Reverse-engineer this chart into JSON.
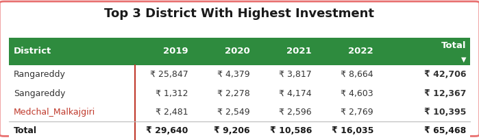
{
  "title": "Top 3 District With Highest Investment",
  "title_fontsize": 13,
  "header_bg_color": "#2e8b3e",
  "header_text_color": "#ffffff",
  "outer_border_color": "#e87070",
  "col_divider_color": "#c0392b",
  "columns": [
    "District",
    "2019",
    "2020",
    "2021",
    "2022",
    "Total"
  ],
  "col_aligns": [
    "left",
    "right",
    "right",
    "right",
    "right",
    "right"
  ],
  "rows": [
    [
      "Rangareddy",
      "₹ 25,847",
      "₹ 4,379",
      "₹ 3,817",
      "₹ 8,664",
      "₹ 42,706"
    ],
    [
      "Sangareddy",
      "₹ 1,312",
      "₹ 2,278",
      "₹ 4,174",
      "₹ 4,603",
      "₹ 12,367"
    ],
    [
      "Medchal_Malkajgiri",
      "₹ 2,481",
      "₹ 2,549",
      "₹ 2,596",
      "₹ 2,769",
      "₹ 10,395"
    ]
  ],
  "total_row": [
    "Total",
    "₹ 29,640",
    "₹ 9,206",
    "₹ 10,586",
    "₹ 16,035",
    "₹ 65,468"
  ],
  "medchal_color": "#c0392b",
  "normal_text_color": "#333333",
  "total_text_color": "#1a1a1a",
  "figsize": [
    6.99,
    2.04
  ],
  "dpi": 100
}
